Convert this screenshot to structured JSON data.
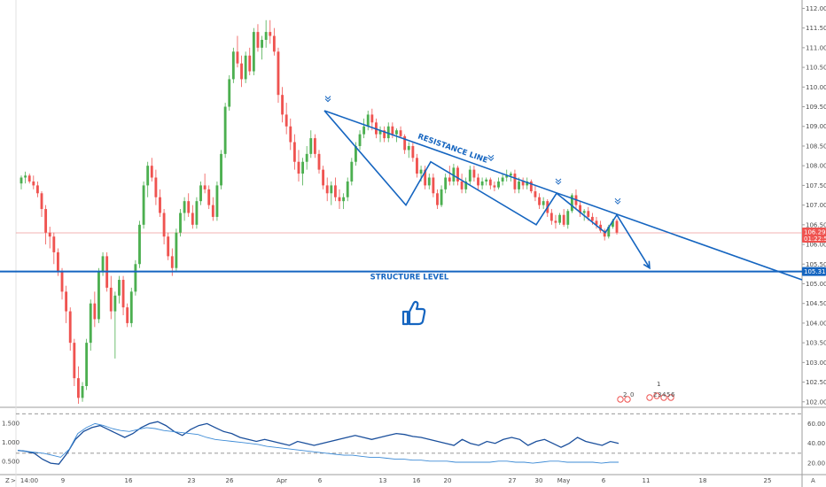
{
  "chart_data": [
    {
      "type": "candlestick",
      "title": "",
      "colors": {
        "up": "#26a69a",
        "up_fill": "#4caf50",
        "down": "#ef5350",
        "annotation": "#1565c0",
        "last_price_line": "#ef9a9a",
        "last_price_tag": "#ef5350",
        "structure_tag": "#1565c0"
      },
      "ylim": [
        101.95,
        112.1
      ],
      "y_ticks": [
        "112.000",
        "111.500",
        "111.000",
        "110.500",
        "110.000",
        "109.500",
        "109.000",
        "108.500",
        "108.000",
        "107.500",
        "107.000",
        "106.500",
        "106.000",
        "105.500",
        "105.000",
        "104.500",
        "104.000",
        "103.500",
        "103.000",
        "102.500",
        "102.000"
      ],
      "x_ticks": [
        "14:00",
        "9",
        "16",
        "23",
        "26",
        "Apr",
        "6",
        "13",
        "16",
        "20",
        "27",
        "30",
        "May",
        "6",
        "11",
        "18",
        "25"
      ],
      "last_price": {
        "value": 106.293,
        "label": "106.293",
        "countdown": "01:22:59"
      },
      "structure_level": {
        "value": 105.313,
        "label": "105.313",
        "text": "STRUCTURE LEVEL"
      },
      "resistance_line": {
        "text": "RESISTANCE LINE",
        "from": [
          366,
          109.4
        ],
        "to": [
          905,
          105.1
        ]
      },
      "zigzag": [
        [
          366,
          109.4
        ],
        [
          458,
          107.0
        ],
        [
          486,
          108.1
        ],
        [
          605,
          106.5
        ],
        [
          628,
          107.3
        ],
        [
          683,
          106.3
        ],
        [
          696,
          106.75
        ],
        [
          733,
          105.4
        ]
      ],
      "pivot_markers": [
        [
          370,
          109.7
        ],
        [
          554,
          108.2
        ],
        [
          630,
          107.6
        ],
        [
          697,
          107.1
        ]
      ],
      "candles_ohlc": [
        [
          107.55,
          107.75,
          107.4,
          107.7
        ],
        [
          107.7,
          107.85,
          107.55,
          107.75
        ],
        [
          107.75,
          107.8,
          107.55,
          107.6
        ],
        [
          107.6,
          107.75,
          107.4,
          107.5
        ],
        [
          107.5,
          107.6,
          107.2,
          107.3
        ],
        [
          107.3,
          107.35,
          106.7,
          106.9
        ],
        [
          106.9,
          107.0,
          106.0,
          106.3
        ],
        [
          106.3,
          106.45,
          105.9,
          106.2
        ],
        [
          106.2,
          106.3,
          105.5,
          105.8
        ],
        [
          105.8,
          105.9,
          105.2,
          105.3
        ],
        [
          105.3,
          105.4,
          104.6,
          104.8
        ],
        [
          104.8,
          104.95,
          104.0,
          104.3
        ],
        [
          104.3,
          104.4,
          103.3,
          103.5
        ],
        [
          103.5,
          103.6,
          102.4,
          102.6
        ],
        [
          102.6,
          102.9,
          101.95,
          102.1
        ],
        [
          102.1,
          102.5,
          102.0,
          102.4
        ],
        [
          102.4,
          103.6,
          102.3,
          103.5
        ],
        [
          103.5,
          104.6,
          103.3,
          104.5
        ],
        [
          104.5,
          104.8,
          103.9,
          104.1
        ],
        [
          104.1,
          105.4,
          104.0,
          105.3
        ],
        [
          105.3,
          105.8,
          105.2,
          105.7
        ],
        [
          105.7,
          105.8,
          104.8,
          104.9
        ],
        [
          104.9,
          105.2,
          104.1,
          104.3
        ],
        [
          104.3,
          104.8,
          103.1,
          104.7
        ],
        [
          104.7,
          105.2,
          104.5,
          105.1
        ],
        [
          105.1,
          105.2,
          104.2,
          104.4
        ],
        [
          104.4,
          104.5,
          103.9,
          104.0
        ],
        [
          104.0,
          104.9,
          103.9,
          104.8
        ],
        [
          104.8,
          105.6,
          104.7,
          105.5
        ],
        [
          105.5,
          106.6,
          105.4,
          106.5
        ],
        [
          106.5,
          107.6,
          106.4,
          107.5
        ],
        [
          107.5,
          108.1,
          107.2,
          108.0
        ],
        [
          108.0,
          108.2,
          107.6,
          107.7
        ],
        [
          107.7,
          107.9,
          107.0,
          107.2
        ],
        [
          107.2,
          107.4,
          106.7,
          106.8
        ],
        [
          106.8,
          106.9,
          106.0,
          106.2
        ],
        [
          106.2,
          106.3,
          105.6,
          105.7
        ],
        [
          105.7,
          105.9,
          105.2,
          105.4
        ],
        [
          105.4,
          106.4,
          105.3,
          106.3
        ],
        [
          106.3,
          106.9,
          106.2,
          106.8
        ],
        [
          106.8,
          107.2,
          106.6,
          107.1
        ],
        [
          107.1,
          107.3,
          106.7,
          106.8
        ],
        [
          106.8,
          107.0,
          106.4,
          106.5
        ],
        [
          106.5,
          107.2,
          106.4,
          107.1
        ],
        [
          107.1,
          107.6,
          107.0,
          107.5
        ],
        [
          107.5,
          107.8,
          107.3,
          107.4
        ],
        [
          107.4,
          107.5,
          106.9,
          107.0
        ],
        [
          107.0,
          107.2,
          106.6,
          106.7
        ],
        [
          106.7,
          107.6,
          106.6,
          107.5
        ],
        [
          107.5,
          108.4,
          107.4,
          108.3
        ],
        [
          108.3,
          109.6,
          108.2,
          109.5
        ],
        [
          109.5,
          110.3,
          109.4,
          110.2
        ],
        [
          110.2,
          111.0,
          110.1,
          110.9
        ],
        [
          110.9,
          111.3,
          110.5,
          110.6
        ],
        [
          110.6,
          110.8,
          110.0,
          110.2
        ],
        [
          110.2,
          110.9,
          110.1,
          110.8
        ],
        [
          110.8,
          111.0,
          110.3,
          110.4
        ],
        [
          110.4,
          111.5,
          110.3,
          111.4
        ],
        [
          111.4,
          111.6,
          110.9,
          111.0
        ],
        [
          111.0,
          111.3,
          110.7,
          111.2
        ],
        [
          111.2,
          111.7,
          111.0,
          111.4
        ],
        [
          111.4,
          111.7,
          111.1,
          111.3
        ],
        [
          111.3,
          111.5,
          110.8,
          110.9
        ],
        [
          110.9,
          111.0,
          109.6,
          109.8
        ],
        [
          109.8,
          110.0,
          109.1,
          109.3
        ],
        [
          109.3,
          109.6,
          108.8,
          109.0
        ],
        [
          109.0,
          109.2,
          108.4,
          108.6
        ],
        [
          108.6,
          108.8,
          107.9,
          108.1
        ],
        [
          108.1,
          108.4,
          107.6,
          107.8
        ],
        [
          107.8,
          108.2,
          107.5,
          108.1
        ],
        [
          108.1,
          108.5,
          107.9,
          108.3
        ],
        [
          108.3,
          108.9,
          108.2,
          108.7
        ],
        [
          108.7,
          108.8,
          108.2,
          108.3
        ],
        [
          108.3,
          108.4,
          107.8,
          107.9
        ],
        [
          107.9,
          108.0,
          107.4,
          107.5
        ],
        [
          107.5,
          107.7,
          107.1,
          107.3
        ],
        [
          107.3,
          107.6,
          107.0,
          107.5
        ],
        [
          107.5,
          107.7,
          107.1,
          107.2
        ],
        [
          107.2,
          107.4,
          106.9,
          107.1
        ],
        [
          107.1,
          107.3,
          106.9,
          107.2
        ],
        [
          107.2,
          107.7,
          107.1,
          107.6
        ],
        [
          107.6,
          108.2,
          107.5,
          108.1
        ],
        [
          108.1,
          108.6,
          108.0,
          108.5
        ],
        [
          108.5,
          108.9,
          108.4,
          108.8
        ],
        [
          108.8,
          109.2,
          108.7,
          109.0
        ],
        [
          109.0,
          109.4,
          108.9,
          109.3
        ],
        [
          109.3,
          109.45,
          108.9,
          109.1
        ],
        [
          109.1,
          109.2,
          108.7,
          108.8
        ],
        [
          108.8,
          109.0,
          108.6,
          108.9
        ],
        [
          108.9,
          109.0,
          108.6,
          108.7
        ],
        [
          108.7,
          109.1,
          108.6,
          109.0
        ],
        [
          109.0,
          109.1,
          108.7,
          108.8
        ],
        [
          108.8,
          108.95,
          108.6,
          108.9
        ],
        [
          108.9,
          109.0,
          108.7,
          108.75
        ],
        [
          108.75,
          108.8,
          108.3,
          108.4
        ],
        [
          108.4,
          108.6,
          108.2,
          108.5
        ],
        [
          108.5,
          108.6,
          108.1,
          108.2
        ],
        [
          108.2,
          108.3,
          107.7,
          107.8
        ],
        [
          107.8,
          108.0,
          107.6,
          107.9
        ],
        [
          107.9,
          108.0,
          107.4,
          107.5
        ],
        [
          107.5,
          107.8,
          107.4,
          107.7
        ],
        [
          107.7,
          107.8,
          107.2,
          107.3
        ],
        [
          107.3,
          107.4,
          106.9,
          107.0
        ],
        [
          107.0,
          107.5,
          106.95,
          107.4
        ],
        [
          107.4,
          107.8,
          107.3,
          107.7
        ],
        [
          107.7,
          108.0,
          107.5,
          107.6
        ],
        [
          107.6,
          108.05,
          107.5,
          107.95
        ],
        [
          107.95,
          108.0,
          107.5,
          107.6
        ],
        [
          107.6,
          107.8,
          107.3,
          107.4
        ],
        [
          107.4,
          107.7,
          107.3,
          107.6
        ],
        [
          107.6,
          108.0,
          107.5,
          107.9
        ],
        [
          107.9,
          108.0,
          107.6,
          107.7
        ],
        [
          107.7,
          107.8,
          107.4,
          107.5
        ],
        [
          107.5,
          107.7,
          107.4,
          107.6
        ],
        [
          107.6,
          107.7,
          107.5,
          107.65
        ],
        [
          107.65,
          107.7,
          107.4,
          107.5
        ],
        [
          107.5,
          107.6,
          107.35,
          107.45
        ],
        [
          107.45,
          107.7,
          107.4,
          107.6
        ],
        [
          107.6,
          107.8,
          107.5,
          107.7
        ],
        [
          107.7,
          107.9,
          107.6,
          107.75
        ],
        [
          107.75,
          107.85,
          107.6,
          107.8
        ],
        [
          107.8,
          107.9,
          107.3,
          107.4
        ],
        [
          107.4,
          107.7,
          107.3,
          107.6
        ],
        [
          107.6,
          107.7,
          107.4,
          107.5
        ],
        [
          107.5,
          107.7,
          107.4,
          107.6
        ],
        [
          107.6,
          107.65,
          107.3,
          107.35
        ],
        [
          107.35,
          107.5,
          107.1,
          107.2
        ],
        [
          107.2,
          107.3,
          106.9,
          107.0
        ],
        [
          107.0,
          107.2,
          106.9,
          107.1
        ],
        [
          107.1,
          107.15,
          106.7,
          106.8
        ],
        [
          106.8,
          106.9,
          106.5,
          106.6
        ],
        [
          106.6,
          106.75,
          106.4,
          106.55
        ],
        [
          106.55,
          106.8,
          106.5,
          106.75
        ],
        [
          106.75,
          106.9,
          106.45,
          106.5
        ],
        [
          106.5,
          106.9,
          106.4,
          106.85
        ],
        [
          106.85,
          107.3,
          106.8,
          107.25
        ],
        [
          107.25,
          107.4,
          106.9,
          107.0
        ],
        [
          107.0,
          107.1,
          106.7,
          106.8
        ],
        [
          106.8,
          106.9,
          106.6,
          106.85
        ],
        [
          106.85,
          106.95,
          106.6,
          106.7
        ],
        [
          106.7,
          106.8,
          106.5,
          106.6
        ],
        [
          106.6,
          106.7,
          106.4,
          106.5
        ],
        [
          106.5,
          106.6,
          106.3,
          106.35
        ],
        [
          106.35,
          106.4,
          106.1,
          106.2
        ],
        [
          106.2,
          106.5,
          106.15,
          106.45
        ],
        [
          106.45,
          106.65,
          106.4,
          106.6
        ],
        [
          106.6,
          106.65,
          106.25,
          106.3
        ]
      ]
    },
    {
      "type": "line",
      "title": "",
      "left_axis_ticks": [
        "1.500",
        "1.000",
        "0.500"
      ],
      "right_axis_ticks": [
        "60.00",
        "40.00",
        "20.00"
      ],
      "left_ylim": [
        0.25,
        1.8
      ],
      "right_ylim": [
        12,
        72
      ],
      "reference_levels": [
        70,
        30
      ],
      "x_ticks": [
        "14:00",
        "9",
        "16",
        "23",
        "26",
        "Apr",
        "6",
        "13",
        "16",
        "20",
        "27",
        "30",
        "May",
        "6",
        "11",
        "18",
        "25"
      ],
      "series": [
        {
          "color": "#1a4f9c",
          "axis": "right",
          "values": [
            33,
            32,
            30,
            24,
            20,
            19,
            30,
            44,
            52,
            56,
            58,
            54,
            50,
            46,
            50,
            56,
            60,
            62,
            58,
            52,
            48,
            54,
            58,
            60,
            56,
            52,
            50,
            46,
            44,
            42,
            44,
            42,
            40,
            38,
            42,
            40,
            38,
            40,
            42,
            44,
            46,
            48,
            46,
            44,
            46,
            48,
            50,
            49,
            47,
            46,
            44,
            42,
            40,
            38,
            44,
            40,
            38,
            42,
            40,
            44,
            46,
            44,
            38,
            42,
            44,
            40,
            36,
            40,
            46,
            42,
            40,
            38,
            42,
            40
          ]
        },
        {
          "color": "#3d8bd6",
          "axis": "right",
          "values": [
            33,
            32,
            31,
            30,
            28,
            26,
            34,
            50,
            56,
            60,
            58,
            55,
            53,
            52,
            54,
            56,
            55,
            53,
            52,
            51,
            50,
            49,
            46,
            44,
            43,
            42,
            41,
            40,
            39,
            37,
            36,
            35,
            34,
            33,
            32,
            31,
            30,
            29,
            28,
            28,
            27,
            26,
            26,
            25,
            24,
            24,
            23,
            23,
            22,
            22,
            22,
            21,
            21,
            21,
            21,
            21,
            22,
            22,
            21,
            21,
            20,
            21,
            22,
            22,
            21,
            21,
            21,
            21,
            20,
            21,
            21
          ]
        }
      ],
      "event_icons": [
        "2",
        "0",
        "1",
        "2",
        "3",
        "4",
        "5",
        "6"
      ]
    }
  ],
  "axis_ui": {
    "z_label": "Z",
    "a_label": "A",
    "cursor_label": ">"
  }
}
